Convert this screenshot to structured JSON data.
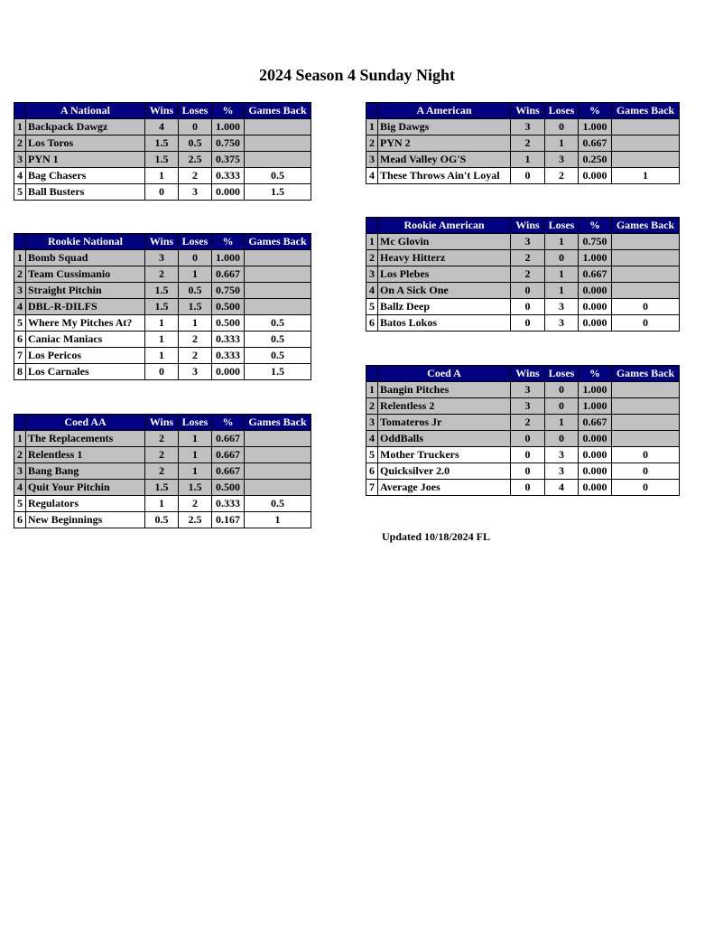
{
  "title": "2024 Season 4 Sunday Night",
  "updated": "Updated 10/18/2024 FL",
  "colors": {
    "header_bg": "#000080",
    "leader_row_bg": "#c0c0c0"
  },
  "columns": [
    "Wins",
    "Loses",
    "%",
    "Games Back"
  ],
  "tables": [
    {
      "id": "a-national",
      "name": "A National",
      "rows": [
        [
          "1",
          "Backpack Dawgz",
          "4",
          "0",
          "1.000",
          ""
        ],
        [
          "2",
          "Los Toros",
          "1.5",
          "0.5",
          "0.750",
          ""
        ],
        [
          "3",
          "PYN 1",
          "1.5",
          "2.5",
          "0.375",
          ""
        ],
        [
          "4",
          "Bag Chasers",
          "1",
          "2",
          "0.333",
          "0.5"
        ],
        [
          "5",
          "Ball Busters",
          "0",
          "3",
          "0.000",
          "1.5"
        ]
      ]
    },
    {
      "id": "a-american",
      "name": "A American",
      "rows": [
        [
          "1",
          "Big Dawgs",
          "3",
          "0",
          "1.000",
          ""
        ],
        [
          "2",
          "PYN 2",
          "2",
          "1",
          "0.667",
          ""
        ],
        [
          "3",
          "Mead Valley OG'S",
          "1",
          "3",
          "0.250",
          ""
        ],
        [
          "4",
          "These Throws Ain't Loyal",
          "0",
          "2",
          "0.000",
          "1"
        ]
      ]
    },
    {
      "id": "rookie-national",
      "name": "Rookie National",
      "rows": [
        [
          "1",
          "Bomb Squad",
          "3",
          "0",
          "1.000",
          ""
        ],
        [
          "2",
          "Team Cussimanio",
          "2",
          "1",
          "0.667",
          ""
        ],
        [
          "3",
          "Straight Pitchin",
          "1.5",
          "0.5",
          "0.750",
          ""
        ],
        [
          "4",
          "DBL-R-DILFS",
          "1.5",
          "1.5",
          "0.500",
          ""
        ],
        [
          "5",
          "Where My Pitches At?",
          "1",
          "1",
          "0.500",
          "0.5"
        ],
        [
          "6",
          "Caniac Maniacs",
          "1",
          "2",
          "0.333",
          "0.5"
        ],
        [
          "7",
          "Los Pericos",
          "1",
          "2",
          "0.333",
          "0.5"
        ],
        [
          "8",
          "Los Carnales",
          "0",
          "3",
          "0.000",
          "1.5"
        ]
      ]
    },
    {
      "id": "rookie-american",
      "name": "Rookie American",
      "rows": [
        [
          "1",
          "Mc Glovin",
          "3",
          "1",
          "0.750",
          ""
        ],
        [
          "2",
          "Heavy Hitterz",
          "2",
          "0",
          "1.000",
          ""
        ],
        [
          "3",
          "Los Plebes",
          "2",
          "1",
          "0.667",
          ""
        ],
        [
          "4",
          "On A Sick One",
          "0",
          "1",
          "0.000",
          ""
        ],
        [
          "5",
          "Ballz Deep",
          "0",
          "3",
          "0.000",
          "0"
        ],
        [
          "6",
          "Batos Lokos",
          "0",
          "3",
          "0.000",
          "0"
        ]
      ]
    },
    {
      "id": "coed-a",
      "name": "Coed A",
      "rows": [
        [
          "1",
          "Bangin Pitches",
          "3",
          "0",
          "1.000",
          ""
        ],
        [
          "2",
          "Relentless 2",
          "3",
          "0",
          "1.000",
          ""
        ],
        [
          "3",
          "Tomateros Jr",
          "2",
          "1",
          "0.667",
          ""
        ],
        [
          "4",
          "OddBalls",
          "0",
          "0",
          "0.000",
          ""
        ],
        [
          "5",
          "Mother Truckers",
          "0",
          "3",
          "0.000",
          "0"
        ],
        [
          "6",
          "Quicksilver 2.0",
          "0",
          "3",
          "0.000",
          "0"
        ],
        [
          "7",
          "Average Joes",
          "0",
          "4",
          "0.000",
          "0"
        ]
      ]
    },
    {
      "id": "coed-aa",
      "name": "Coed AA",
      "rows": [
        [
          "1",
          "The Replacements",
          "2",
          "1",
          "0.667",
          ""
        ],
        [
          "2",
          "Relentless 1",
          "2",
          "1",
          "0.667",
          ""
        ],
        [
          "3",
          "Bang Bang",
          "2",
          "1",
          "0.667",
          ""
        ],
        [
          "4",
          "Quit Your Pitchin",
          "1.5",
          "1.5",
          "0.500",
          ""
        ],
        [
          "5",
          "Regulators",
          "1",
          "2",
          "0.333",
          "0.5"
        ],
        [
          "6",
          "New Beginnings",
          "0.5",
          "2.5",
          "0.167",
          "1"
        ]
      ]
    }
  ]
}
